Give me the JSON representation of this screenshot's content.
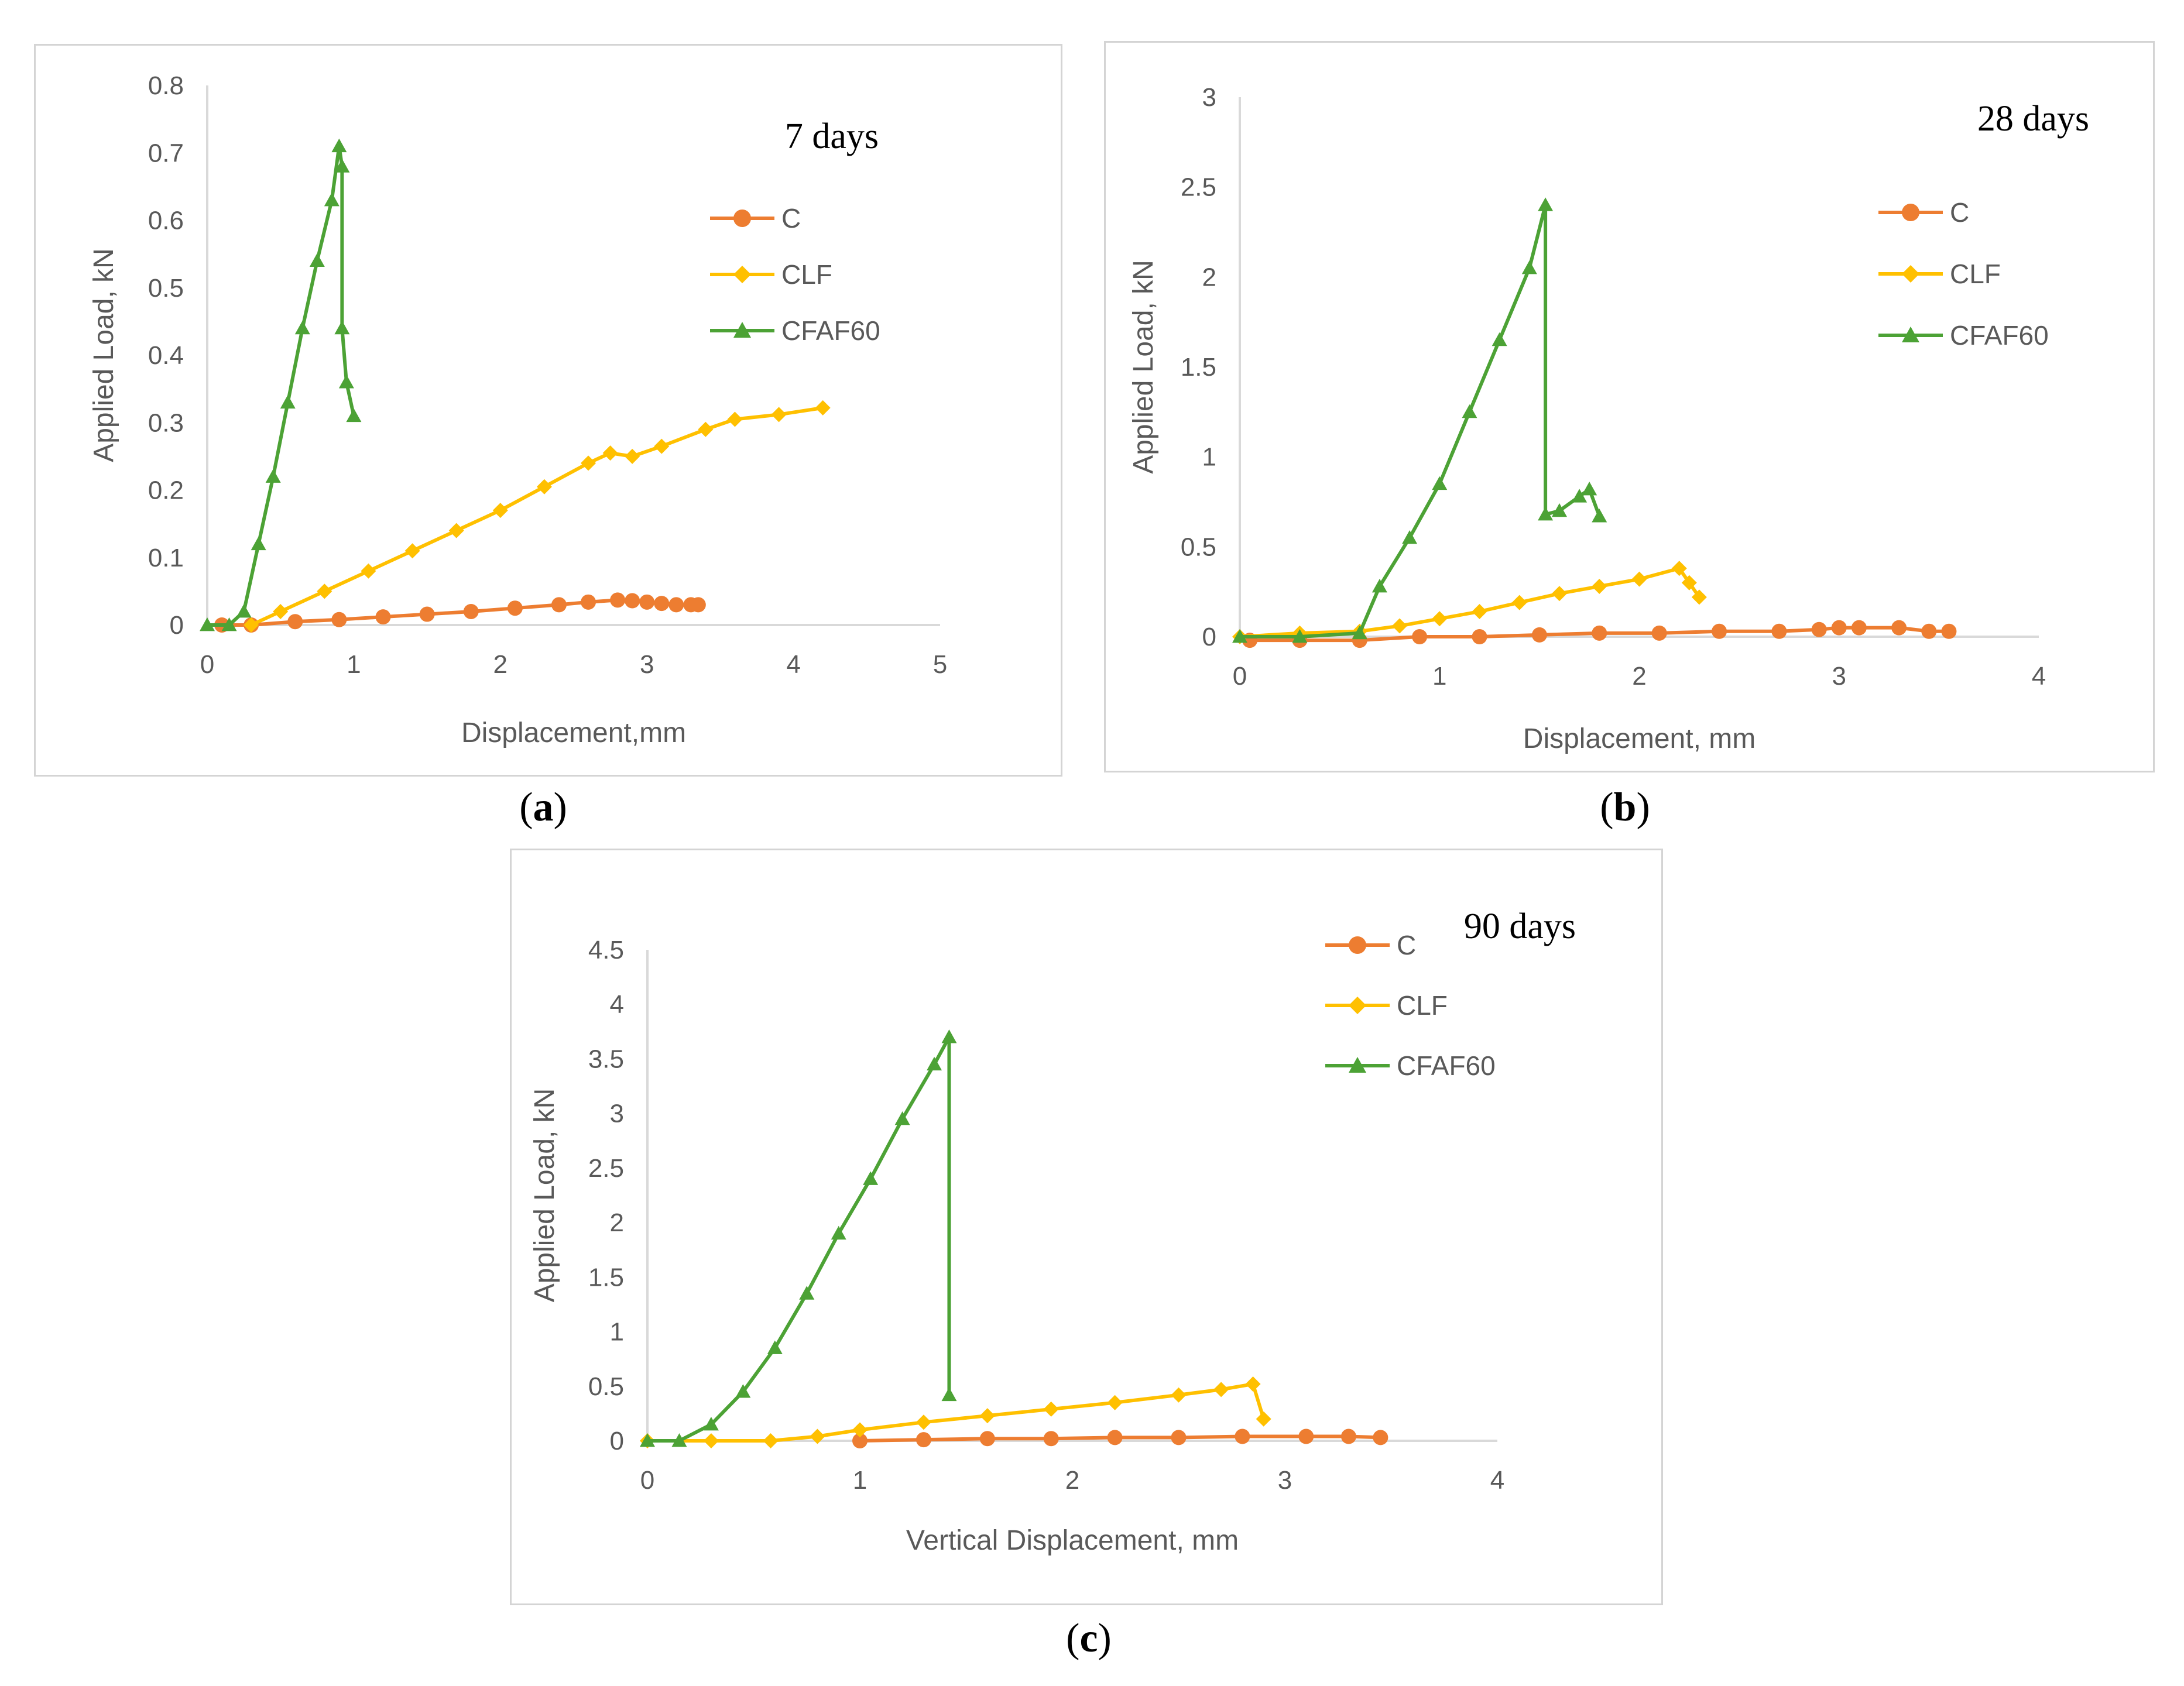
{
  "labels": {
    "a": "a",
    "b": "b",
    "c": "c"
  },
  "colors": {
    "C": "#ED7D31",
    "CLF": "#FFC000",
    "CFAF60": "#4CA235",
    "axis": "#d9d9d9",
    "text": "#595959"
  },
  "chart_data": [
    {
      "id": "a",
      "type": "line",
      "title": "7 days",
      "xlabel": "Displacement,mm",
      "ylabel": "Applied Load, kN",
      "xlim": [
        0,
        5
      ],
      "ylim": [
        0,
        0.8
      ],
      "xticks": [
        "0",
        "1",
        "2",
        "3",
        "4",
        "5"
      ],
      "yticks": [
        "0",
        "0.1",
        "0.2",
        "0.3",
        "0.4",
        "0.5",
        "0.6",
        "0.7",
        "0.8"
      ],
      "legend_position": "right",
      "series": [
        {
          "name": "C",
          "marker": "circle",
          "x": [
            0.1,
            0.3,
            0.6,
            0.9,
            1.2,
            1.5,
            1.8,
            2.1,
            2.4,
            2.6,
            2.8,
            2.9,
            3.0,
            3.1,
            3.2,
            3.3,
            3.35
          ],
          "y": [
            0.0,
            0.0,
            0.005,
            0.008,
            0.012,
            0.016,
            0.02,
            0.025,
            0.03,
            0.034,
            0.037,
            0.036,
            0.034,
            0.032,
            0.03,
            0.03,
            0.03
          ]
        },
        {
          "name": "CLF",
          "marker": "diamond",
          "x": [
            0.3,
            0.5,
            0.8,
            1.1,
            1.4,
            1.7,
            2.0,
            2.3,
            2.6,
            2.75,
            2.9,
            3.1,
            3.4,
            3.6,
            3.9,
            4.2
          ],
          "y": [
            0.0,
            0.02,
            0.05,
            0.08,
            0.11,
            0.14,
            0.17,
            0.205,
            0.24,
            0.255,
            0.25,
            0.265,
            0.29,
            0.305,
            0.312,
            0.322
          ]
        },
        {
          "name": "CFAF60",
          "marker": "triangle",
          "x": [
            0.0,
            0.15,
            0.25,
            0.35,
            0.45,
            0.55,
            0.65,
            0.75,
            0.85,
            0.9,
            0.92,
            0.92,
            0.95,
            1.0
          ],
          "y": [
            0.0,
            0.0,
            0.02,
            0.12,
            0.22,
            0.33,
            0.44,
            0.54,
            0.63,
            0.71,
            0.68,
            0.44,
            0.36,
            0.31
          ]
        }
      ]
    },
    {
      "id": "b",
      "type": "line",
      "title": "28 days",
      "xlabel": "Displacement, mm",
      "ylabel": "Applied Load, kN",
      "xlim": [
        0,
        4
      ],
      "ylim": [
        0,
        3
      ],
      "xticks": [
        "0",
        "1",
        "2",
        "3",
        "4"
      ],
      "yticks": [
        "0",
        "0.5",
        "1",
        "1.5",
        "2",
        "2.5",
        "3"
      ],
      "legend_position": "right",
      "series": [
        {
          "name": "C",
          "marker": "circle",
          "x": [
            0.05,
            0.3,
            0.6,
            0.9,
            1.2,
            1.5,
            1.8,
            2.1,
            2.4,
            2.7,
            2.9,
            3.0,
            3.1,
            3.3,
            3.45,
            3.55
          ],
          "y": [
            -0.02,
            -0.02,
            -0.02,
            0.0,
            0.0,
            0.01,
            0.02,
            0.02,
            0.03,
            0.03,
            0.04,
            0.05,
            0.05,
            0.05,
            0.03,
            0.03
          ]
        },
        {
          "name": "CLF",
          "marker": "diamond",
          "x": [
            0.0,
            0.3,
            0.6,
            0.8,
            1.0,
            1.2,
            1.4,
            1.6,
            1.8,
            2.0,
            2.2,
            2.25,
            2.3
          ],
          "y": [
            0.0,
            0.02,
            0.03,
            0.06,
            0.1,
            0.14,
            0.19,
            0.24,
            0.28,
            0.32,
            0.38,
            0.3,
            0.22
          ]
        },
        {
          "name": "CFAF60",
          "marker": "triangle",
          "x": [
            0.0,
            0.3,
            0.6,
            0.7,
            0.85,
            1.0,
            1.15,
            1.3,
            1.45,
            1.53,
            1.53,
            1.6,
            1.7,
            1.75,
            1.8
          ],
          "y": [
            0.0,
            0.0,
            0.02,
            0.28,
            0.55,
            0.85,
            1.25,
            1.65,
            2.05,
            2.4,
            0.68,
            0.7,
            0.78,
            0.82,
            0.67
          ]
        }
      ]
    },
    {
      "id": "c",
      "type": "line",
      "title": "90 days",
      "xlabel": "Vertical Displacement, mm",
      "ylabel": "Applied Load, kN",
      "xlim": [
        0,
        4
      ],
      "ylim": [
        0,
        4.5
      ],
      "xticks": [
        "0",
        "1",
        "2",
        "3",
        "4"
      ],
      "yticks": [
        "0",
        "0.5",
        "1",
        "1.5",
        "2",
        "2.5",
        "3",
        "3.5",
        "4",
        "4.5"
      ],
      "legend_position": "top-right",
      "series": [
        {
          "name": "C",
          "marker": "circle",
          "x": [
            1.0,
            1.3,
            1.6,
            1.9,
            2.2,
            2.5,
            2.8,
            3.1,
            3.3,
            3.45
          ],
          "y": [
            0.0,
            0.01,
            0.02,
            0.02,
            0.03,
            0.03,
            0.04,
            0.04,
            0.04,
            0.03
          ]
        },
        {
          "name": "CLF",
          "marker": "diamond",
          "x": [
            0.0,
            0.3,
            0.58,
            0.8,
            1.0,
            1.3,
            1.6,
            1.9,
            2.2,
            2.5,
            2.7,
            2.85,
            2.9
          ],
          "y": [
            0.0,
            0.0,
            0.0,
            0.04,
            0.1,
            0.17,
            0.23,
            0.29,
            0.35,
            0.42,
            0.47,
            0.52,
            0.2
          ]
        },
        {
          "name": "CFAF60",
          "marker": "triangle",
          "x": [
            0.0,
            0.15,
            0.3,
            0.45,
            0.6,
            0.75,
            0.9,
            1.05,
            1.2,
            1.35,
            1.42,
            1.42
          ],
          "y": [
            0.0,
            0.0,
            0.15,
            0.45,
            0.85,
            1.35,
            1.9,
            2.4,
            2.95,
            3.45,
            3.7,
            0.42
          ]
        }
      ]
    }
  ]
}
